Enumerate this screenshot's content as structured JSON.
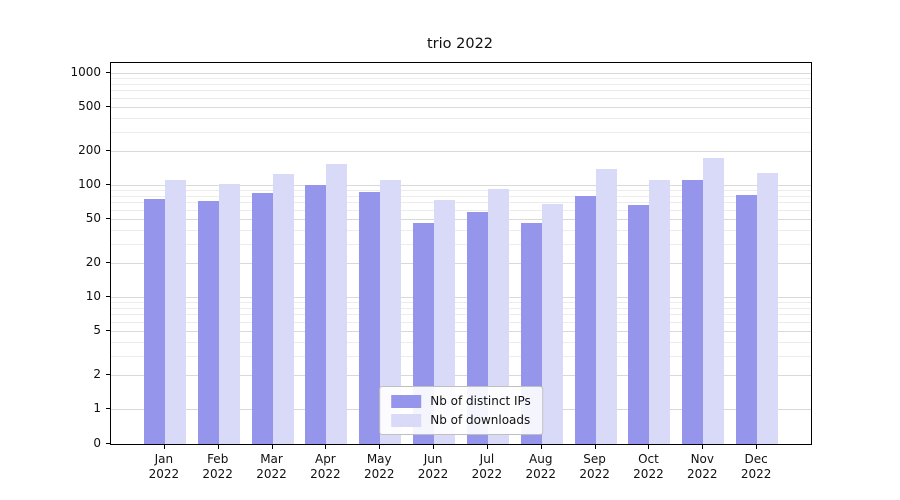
{
  "chart_data": {
    "type": "bar",
    "title": "trio 2022",
    "year_label": "2022",
    "categories": [
      "Jan",
      "Feb",
      "Mar",
      "Apr",
      "May",
      "Jun",
      "Jul",
      "Aug",
      "Sep",
      "Oct",
      "Nov",
      "Dec"
    ],
    "series": [
      {
        "name": "Nb of distinct IPs",
        "color": "#9595ec",
        "values": [
          75,
          72,
          85,
          100,
          87,
          46,
          57,
          46,
          80,
          66,
          110,
          82
        ]
      },
      {
        "name": "Nb of downloads",
        "color": "#d9d9f8",
        "values": [
          110,
          103,
          125,
          155,
          112,
          74,
          92,
          67,
          140,
          110,
          175,
          128
        ]
      }
    ],
    "y_ticks": [
      0,
      1,
      2,
      5,
      10,
      20,
      50,
      100,
      200,
      500,
      1000
    ],
    "yscale": "symlog",
    "ylim": [
      0,
      1000
    ],
    "xlabel": "",
    "ylabel": "",
    "grid": true,
    "legend_position": "lower center"
  }
}
